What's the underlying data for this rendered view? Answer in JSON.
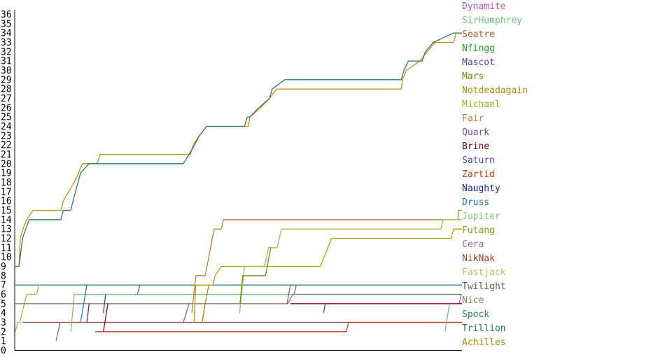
{
  "chart_data": {
    "type": "line",
    "title": "",
    "xlabel": "",
    "ylabel": "",
    "xlim": [
      0,
      100
    ],
    "ylim": [
      0,
      36
    ],
    "grid": false,
    "legend_position": "right",
    "y_ticks": [
      "0",
      "1",
      "2",
      "3",
      "4",
      "5",
      "6",
      "7",
      "8",
      "9",
      "10",
      "11",
      "12",
      "13",
      "14",
      "15",
      "16",
      "17",
      "18",
      "19",
      "20",
      "21",
      "22",
      "23",
      "24",
      "25",
      "26",
      "27",
      "28",
      "29",
      "30",
      "31",
      "32",
      "33",
      "34",
      "35",
      "36"
    ],
    "legend": [
      {
        "name": "Dynamite",
        "color": "#c050c0"
      },
      {
        "name": "SirHumphrey",
        "color": "#70c080"
      },
      {
        "name": "Seatre",
        "color": "#c05828"
      },
      {
        "name": "Nfingg",
        "color": "#20a020"
      },
      {
        "name": "Mascot",
        "color": "#5040b0"
      },
      {
        "name": "Mars",
        "color": "#808000"
      },
      {
        "name": "Notdeadagain",
        "color": "#b08800"
      },
      {
        "name": "Michael",
        "color": "#a8a820"
      },
      {
        "name": "Fair",
        "color": "#b08050"
      },
      {
        "name": "Quark",
        "color": "#804880"
      },
      {
        "name": "Brine",
        "color": "#800010"
      },
      {
        "name": "Saturn",
        "color": "#3848a8"
      },
      {
        "name": "Zartid",
        "color": "#c03810"
      },
      {
        "name": "Naughty",
        "color": "#2020b0"
      },
      {
        "name": "Druss",
        "color": "#2070c0"
      },
      {
        "name": "Jupiter",
        "color": "#90c080"
      },
      {
        "name": "Futang",
        "color": "#80a000"
      },
      {
        "name": "Cera",
        "color": "#8060c0"
      },
      {
        "name": "NikNak",
        "color": "#a04030"
      },
      {
        "name": "Fastjack",
        "color": "#b0c060"
      },
      {
        "name": "Twilight",
        "color": "#606050"
      },
      {
        "name": "Nice",
        "color": "#808060"
      },
      {
        "name": "Spock",
        "color": "#2a8060"
      },
      {
        "name": "Trillion",
        "color": "#307050"
      },
      {
        "name": "Achilles",
        "color": "#b09000"
      }
    ],
    "series": [
      {
        "name": "Achilles",
        "color": "#b8960c",
        "points": [
          [
            0,
            9
          ],
          [
            0.8,
            9
          ],
          [
            1.1,
            12
          ],
          [
            1.7,
            13
          ],
          [
            2.5,
            14
          ],
          [
            3.9,
            15
          ],
          [
            10.2,
            15
          ],
          [
            10.7,
            16
          ],
          [
            11.9,
            17
          ],
          [
            13.2,
            18
          ],
          [
            14.1,
            19
          ],
          [
            15.0,
            20
          ],
          [
            18.3,
            20
          ],
          [
            19.0,
            21
          ],
          [
            39.2,
            21
          ],
          [
            39.8,
            22
          ],
          [
            41.2,
            23
          ],
          [
            42.8,
            24
          ],
          [
            52.2,
            24
          ],
          [
            52.5,
            25
          ],
          [
            54.9,
            26
          ],
          [
            56.9,
            27
          ],
          [
            58.5,
            28
          ],
          [
            86.4,
            28
          ],
          [
            86.7,
            29
          ],
          [
            87.5,
            30
          ],
          [
            90.6,
            31
          ],
          [
            92.2,
            32
          ],
          [
            94.0,
            33
          ],
          [
            98.1,
            33
          ],
          [
            98.7,
            34
          ],
          [
            100,
            34
          ]
        ]
      },
      {
        "name": "Spock",
        "color": "#2e7d5e",
        "points": [
          [
            0,
            9
          ],
          [
            0.8,
            9
          ],
          [
            1.6,
            12
          ],
          [
            2.3,
            13
          ],
          [
            3.1,
            14
          ],
          [
            10.2,
            14
          ],
          [
            10.7,
            15
          ],
          [
            12.4,
            15
          ],
          [
            12.9,
            16
          ],
          [
            14.6,
            19
          ],
          [
            16.5,
            20
          ],
          [
            37.6,
            20
          ],
          [
            38.9,
            21
          ],
          [
            40.1,
            22
          ],
          [
            41.2,
            23
          ],
          [
            42.8,
            24
          ],
          [
            51.3,
            24
          ],
          [
            51.9,
            25
          ],
          [
            52.5,
            25
          ],
          [
            54.5,
            26
          ],
          [
            56.9,
            27
          ],
          [
            57.5,
            28
          ],
          [
            60.3,
            29
          ],
          [
            86.4,
            29
          ],
          [
            87.0,
            30
          ],
          [
            88.0,
            31
          ],
          [
            91.1,
            31
          ],
          [
            91.8,
            32
          ],
          [
            93.6,
            33
          ],
          [
            98.1,
            34
          ],
          [
            100,
            34
          ]
        ]
      },
      {
        "name": "Twilight",
        "color": "#2a8a80",
        "points": [
          [
            0,
            7
          ],
          [
            100,
            7
          ]
        ]
      },
      {
        "name": "Fastjack",
        "color": "#a8c040",
        "points": [
          [
            0,
            2
          ],
          [
            0.5,
            3
          ],
          [
            1.0,
            3
          ],
          [
            2.5,
            6
          ],
          [
            4.7,
            6
          ],
          [
            5.3,
            7
          ],
          [
            5.4,
            7
          ]
        ]
      },
      {
        "name": "NikNak",
        "color": "#a04838",
        "points": [
          [
            1.6,
            3
          ],
          [
            100,
            3
          ]
        ]
      },
      {
        "name": "Zartid",
        "color": "#c04020",
        "points": [
          [
            17.9,
            2
          ],
          [
            74.1,
            2
          ],
          [
            74.6,
            3
          ],
          [
            100,
            3
          ]
        ]
      },
      {
        "name": "Cera",
        "color": "#8060c0",
        "points": [
          [
            9.1,
            1
          ],
          [
            10.0,
            3
          ]
        ]
      },
      {
        "name": "Jupiter",
        "color": "#78c070",
        "points": [
          [
            12.4,
            2
          ],
          [
            13.2,
            6
          ],
          [
            100,
            6
          ]
        ]
      },
      {
        "name": "Druss",
        "color": "#2080c0",
        "points": [
          [
            14.6,
            3
          ],
          [
            16.0,
            7
          ]
        ]
      },
      {
        "name": "Naughty",
        "color": "#3030c0",
        "points": [
          [
            16.0,
            3
          ],
          [
            16.5,
            5
          ]
        ]
      },
      {
        "name": "Saturn",
        "color": "#4040b0",
        "points": [
          [
            19.7,
            4
          ],
          [
            20.2,
            6
          ]
        ]
      },
      {
        "name": "Quark",
        "color": "#805090",
        "points": [
          [
            27.3,
            6
          ],
          [
            27.9,
            7
          ]
        ]
      },
      {
        "name": "Cera",
        "color": "#8060c0",
        "points": [
          [
            37.6,
            3
          ],
          [
            38.9,
            5
          ]
        ]
      },
      {
        "name": "Nice",
        "color": "#808060",
        "points": [
          [
            0,
            5
          ],
          [
            61.0,
            5
          ],
          [
            62.1,
            6
          ],
          [
            100,
            6
          ]
        ]
      },
      {
        "name": "Brine",
        "color": "#900020",
        "points": [
          [
            19.7,
            2
          ],
          [
            20.7,
            5
          ],
          [
            20.7,
            5
          ]
        ]
      },
      {
        "name": "Brine",
        "color": "#900020",
        "points": [
          [
            61.6,
            5
          ],
          [
            100,
            5
          ]
        ]
      },
      {
        "name": "Fair",
        "color": "#b88040",
        "points": [
          [
            39.5,
            4
          ],
          [
            40.4,
            8
          ],
          [
            42.5,
            8
          ],
          [
            44.5,
            13
          ],
          [
            46.1,
            13
          ],
          [
            46.6,
            14
          ],
          [
            99.1,
            14
          ],
          [
            99.2,
            15
          ],
          [
            100,
            15
          ]
        ]
      },
      {
        "name": "Michael",
        "color": "#a8a800",
        "points": [
          [
            40.0,
            3
          ],
          [
            40.4,
            7
          ],
          [
            44.2,
            7
          ],
          [
            44.7,
            8
          ],
          [
            46.1,
            9
          ],
          [
            68.3,
            9
          ],
          [
            70.8,
            12
          ],
          [
            97.6,
            12
          ],
          [
            98.1,
            13
          ],
          [
            100,
            13
          ]
        ]
      },
      {
        "name": "Futang",
        "color": "#80a000",
        "points": [
          [
            41.8,
            3
          ],
          [
            42.5,
            5
          ],
          [
            43.3,
            7
          ]
        ]
      },
      {
        "name": "Fastjack",
        "color": "#a0c040",
        "points": [
          [
            50.2,
            4
          ],
          [
            51.3,
            9
          ],
          [
            55.8,
            9
          ],
          [
            56.7,
            11
          ],
          [
            58.6,
            11
          ],
          [
            59.6,
            13
          ],
          [
            95.3,
            13
          ],
          [
            95.8,
            14
          ],
          [
            100,
            14
          ]
        ]
      },
      {
        "name": "Mars",
        "color": "#7a8a10",
        "points": [
          [
            50.3,
            5
          ],
          [
            50.9,
            8
          ],
          [
            56.0,
            8
          ],
          [
            57.2,
            11
          ]
        ]
      },
      {
        "name": "Dynamite",
        "color": "#9050c0",
        "points": [
          [
            60.8,
            5
          ],
          [
            61.6,
            7
          ]
        ]
      },
      {
        "name": "Twilight",
        "color": "#608050",
        "points": [
          [
            62.4,
            6
          ],
          [
            62.9,
            7
          ]
        ]
      },
      {
        "name": "Mascot",
        "color": "#5040c0",
        "points": [
          [
            69.0,
            4
          ],
          [
            69.4,
            5
          ]
        ]
      },
      {
        "name": "SirHumphrey",
        "color": "#70c080",
        "points": [
          [
            96.2,
            2
          ],
          [
            97.2,
            5
          ]
        ]
      },
      {
        "name": "Dynamite",
        "color": "#c050c0",
        "points": [
          [
            99.4,
            5
          ],
          [
            99.8,
            6
          ]
        ]
      }
    ]
  }
}
